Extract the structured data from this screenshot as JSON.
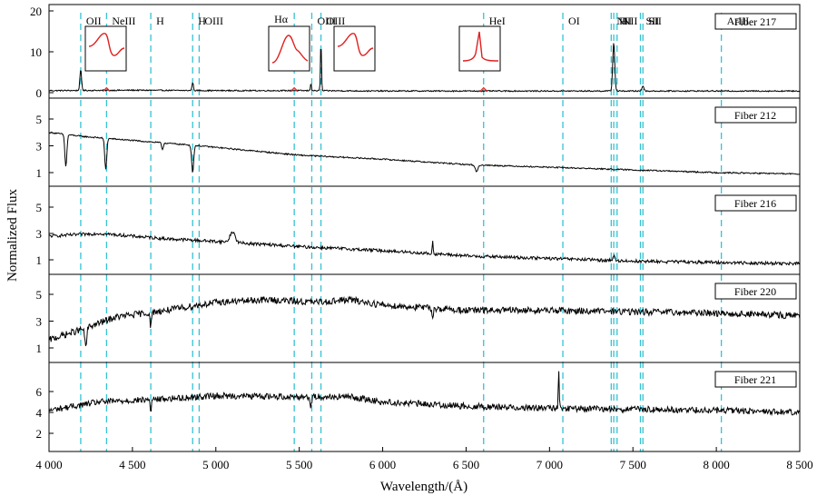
{
  "chart_data": {
    "type": "line",
    "title": "",
    "xlabel": "Wavelength/(Å)",
    "ylabel": "Normalized Flux",
    "xlim": [
      4000,
      8500
    ],
    "x_ticks": [
      4000,
      4500,
      5000,
      5500,
      6000,
      6500,
      7000,
      7500,
      8000,
      8500
    ],
    "x_tick_labels": [
      "4 000",
      "4 500",
      "5 000",
      "5 500",
      "6 000",
      "6 500",
      "7 000",
      "7 500",
      "8 000",
      "8 500"
    ],
    "emission_lines": [
      {
        "label": "OII",
        "wavelength": 4190
      },
      {
        "label": "NeIII",
        "wavelength": 4345
      },
      {
        "label": "H",
        "wavelength": 4610
      },
      {
        "label": "H",
        "wavelength": 4861
      },
      {
        "label": "OIII",
        "wavelength": 4900
      },
      {
        "label": "Hα",
        "wavelength": 5470
      },
      {
        "label": "OIII",
        "wavelength": 5575
      },
      {
        "label": "OIII",
        "wavelength": 5630
      },
      {
        "label": "HeI",
        "wavelength": 6605
      },
      {
        "label": "OI",
        "wavelength": 7080
      },
      {
        "label": "NII",
        "wavelength": 7370
      },
      {
        "label": "H",
        "wavelength": 7385
      },
      {
        "label": "NII",
        "wavelength": 7405
      },
      {
        "label": "SII",
        "wavelength": 7545
      },
      {
        "label": "SII",
        "wavelength": 7560
      },
      {
        "label": "ArIII",
        "wavelength": 8030
      }
    ],
    "panels": [
      {
        "name": "Fiber 217",
        "ylim": [
          0,
          20
        ],
        "y_ticks": [
          0,
          10,
          20
        ],
        "continuum": [
          [
            4000,
            0.5
          ],
          [
            4500,
            0.6
          ],
          [
            5000,
            0.5
          ],
          [
            5500,
            0.5
          ],
          [
            6000,
            0.4
          ],
          [
            6500,
            0.4
          ],
          [
            7000,
            0.4
          ],
          [
            7500,
            0.4
          ],
          [
            8000,
            0.4
          ],
          [
            8500,
            0.4
          ]
        ],
        "features": [
          {
            "center": 4190,
            "amplitude": 5,
            "width": 5
          },
          {
            "center": 4861,
            "amplitude": 2,
            "width": 4
          },
          {
            "center": 5630,
            "amplitude": 12.5,
            "width": 3
          },
          {
            "center": 5570,
            "amplitude": 2,
            "width": 3
          },
          {
            "center": 7385,
            "amplitude": 12,
            "width": 6
          },
          {
            "center": 7560,
            "amplitude": 1.2,
            "width": 6
          }
        ],
        "noise": 0.15
      },
      {
        "name": "Fiber 212",
        "ylim": [
          0,
          6
        ],
        "y_ticks": [
          1,
          3,
          5
        ],
        "continuum": [
          [
            4000,
            4.0
          ],
          [
            4200,
            3.7
          ],
          [
            4500,
            3.4
          ],
          [
            4900,
            3.0
          ],
          [
            5500,
            2.3
          ],
          [
            6000,
            2.0
          ],
          [
            6500,
            1.6
          ],
          [
            7000,
            1.4
          ],
          [
            7500,
            1.2
          ],
          [
            8000,
            1.0
          ],
          [
            8500,
            0.9
          ]
        ],
        "features": [
          {
            "center": 4101,
            "amplitude": -2.4,
            "width": 6
          },
          {
            "center": 4340,
            "amplitude": -2.3,
            "width": 6
          },
          {
            "center": 4861,
            "amplitude": -2.0,
            "width": 6
          },
          {
            "center": 4680,
            "amplitude": -0.5,
            "width": 5
          },
          {
            "center": 6563,
            "amplitude": -0.5,
            "width": 8
          }
        ],
        "noise": 0.05
      },
      {
        "name": "Fiber 216",
        "ylim": [
          0,
          6
        ],
        "y_ticks": [
          1,
          3,
          5
        ],
        "continuum": [
          [
            4000,
            2.8
          ],
          [
            4300,
            3.0
          ],
          [
            4700,
            2.6
          ],
          [
            5000,
            2.4
          ],
          [
            5500,
            2.0
          ],
          [
            6000,
            1.7
          ],
          [
            6500,
            1.3
          ],
          [
            7000,
            1.1
          ],
          [
            7500,
            0.9
          ],
          [
            8000,
            0.8
          ],
          [
            8500,
            0.7
          ]
        ],
        "features": [
          {
            "center": 5100,
            "amplitude": 0.8,
            "width": 15
          },
          {
            "center": 6300,
            "amplitude": 0.9,
            "width": 3
          },
          {
            "center": 7385,
            "amplitude": 0.4,
            "width": 5
          }
        ],
        "noise": 0.12
      },
      {
        "name": "Fiber 220",
        "ylim": [
          0,
          6
        ],
        "y_ticks": [
          1,
          3,
          5
        ],
        "continuum": [
          [
            4000,
            1.6
          ],
          [
            4200,
            2.4
          ],
          [
            4400,
            3.3
          ],
          [
            4700,
            3.8
          ],
          [
            5000,
            4.4
          ],
          [
            5300,
            4.6
          ],
          [
            5600,
            4.4
          ],
          [
            5800,
            4.6
          ],
          [
            6000,
            4.2
          ],
          [
            6500,
            3.8
          ],
          [
            7000,
            3.8
          ],
          [
            7500,
            3.7
          ],
          [
            8000,
            3.6
          ],
          [
            8500,
            3.4
          ]
        ],
        "features": [
          {
            "center": 4220,
            "amplitude": -1.4,
            "width": 6
          },
          {
            "center": 4610,
            "amplitude": -1.0,
            "width": 5
          },
          {
            "center": 6300,
            "amplitude": -0.5,
            "width": 5
          }
        ],
        "noise": 0.25
      },
      {
        "name": "Fiber 221",
        "ylim": [
          0,
          8
        ],
        "y_ticks": [
          2,
          4,
          6
        ],
        "continuum": [
          [
            4000,
            4.2
          ],
          [
            4300,
            5.0
          ],
          [
            4700,
            5.3
          ],
          [
            5000,
            5.6
          ],
          [
            5500,
            5.5
          ],
          [
            5800,
            5.5
          ],
          [
            6000,
            5.0
          ],
          [
            6500,
            4.6
          ],
          [
            7000,
            4.4
          ],
          [
            7500,
            4.3
          ],
          [
            8000,
            4.2
          ],
          [
            8500,
            4.0
          ]
        ],
        "features": [
          {
            "center": 7055,
            "amplitude": 3.5,
            "width": 3
          },
          {
            "center": 4610,
            "amplitude": -1.0,
            "width": 4
          },
          {
            "center": 5570,
            "amplitude": -1.0,
            "width": 4
          }
        ],
        "noise": 0.3
      }
    ],
    "insets": [
      {
        "name": "inset-oii-profile",
        "feature": "OII",
        "shape": "pcygni"
      },
      {
        "name": "inset-halpha-profile",
        "feature": "Hα",
        "shape": "emission-notch"
      },
      {
        "name": "inset-oiii-profile",
        "feature": "OIII",
        "shape": "pcygni"
      },
      {
        "name": "inset-hei-profile",
        "feature": "HeI",
        "shape": "sharp-emission"
      }
    ],
    "colors": {
      "spectrum": "#000000",
      "guide_lines": "#33c3d3",
      "inset_profile": "#e02020"
    }
  }
}
